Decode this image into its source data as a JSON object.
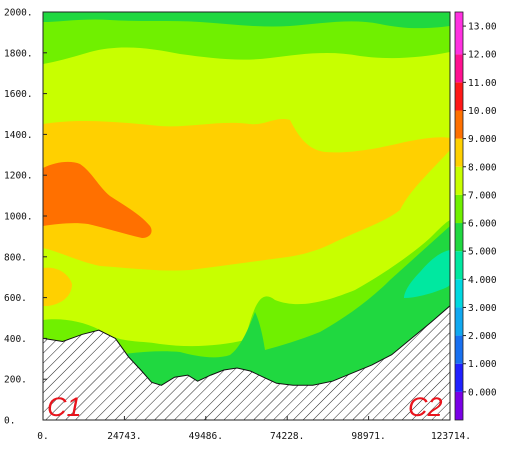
{
  "chart_data": {
    "type": "heatmap",
    "title": "",
    "xlabel": "",
    "ylabel": "",
    "xlim": [
      0,
      123714
    ],
    "ylim": [
      0,
      2000
    ],
    "x_tick_labels": [
      "0.",
      "24743.",
      "49486.",
      "74228.",
      "98971.",
      "123714."
    ],
    "x_tick_values": [
      0,
      24743,
      49486,
      74228,
      98971,
      123714
    ],
    "y_tick_labels": [
      "0.",
      "200.",
      "400.",
      "600.",
      "800.",
      "1000.",
      "1200.",
      "1400.",
      "1600.",
      "1800.",
      "2000."
    ],
    "y_tick_values": [
      0,
      200,
      400,
      600,
      800,
      1000,
      1200,
      1400,
      1600,
      1800,
      2000
    ],
    "colorbar": {
      "min": -0.5,
      "max": 14,
      "labels": [
        "0.000",
        "1.000",
        "2.000",
        "3.000",
        "4.000",
        "5.000",
        "6.000",
        "7.000",
        "8.000",
        "9.000",
        "10.00",
        "11.00",
        "12.00",
        "13.00"
      ],
      "values": [
        0,
        1,
        2,
        3,
        4,
        5,
        6,
        7,
        8,
        9,
        10,
        11,
        12,
        13
      ],
      "colors": [
        "#7a00e6",
        "#2020ff",
        "#1870f0",
        "#10a8f0",
        "#00d8e0",
        "#00e8a0",
        "#20d840",
        "#70f000",
        "#c8ff00",
        "#ffd000",
        "#ff7000",
        "#ff1818",
        "#ff1090",
        "#ff30e0",
        "#ee40ff"
      ]
    },
    "terrain_profile": [
      [
        0,
        400
      ],
      [
        6000,
        385
      ],
      [
        12000,
        420
      ],
      [
        17000,
        440
      ],
      [
        22000,
        400
      ],
      [
        26000,
        310
      ],
      [
        30000,
        240
      ],
      [
        33000,
        185
      ],
      [
        36000,
        170
      ],
      [
        40000,
        210
      ],
      [
        44000,
        220
      ],
      [
        47000,
        190
      ],
      [
        51000,
        220
      ],
      [
        55000,
        245
      ],
      [
        59000,
        255
      ],
      [
        63000,
        240
      ],
      [
        67000,
        210
      ],
      [
        71000,
        180
      ],
      [
        76000,
        170
      ],
      [
        82000,
        170
      ],
      [
        88000,
        190
      ],
      [
        94000,
        230
      ],
      [
        100000,
        270
      ],
      [
        106000,
        320
      ],
      [
        112000,
        400
      ],
      [
        118000,
        480
      ],
      [
        123714,
        560
      ]
    ],
    "corner_labels": [
      "C1",
      "C2"
    ]
  }
}
